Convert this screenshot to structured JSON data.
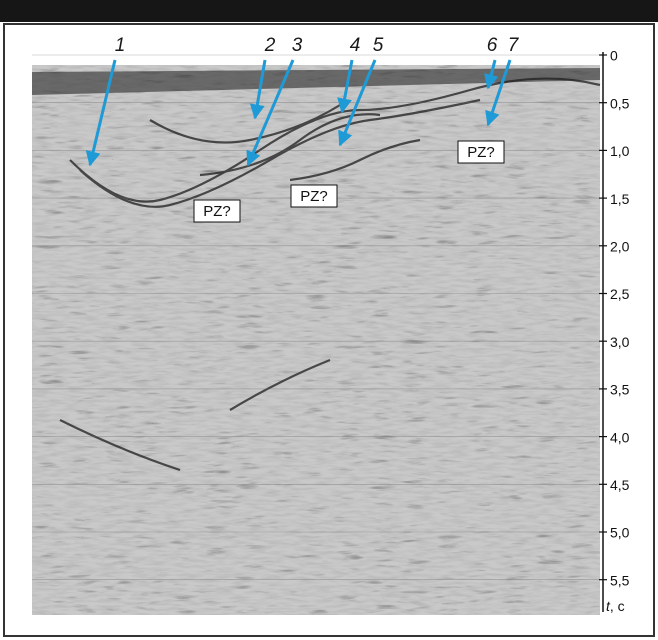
{
  "labels": {
    "arrows": [
      "1",
      "2",
      "3",
      "4",
      "5",
      "6",
      "7"
    ],
    "zones": [
      "PZ?",
      "PZ?",
      "PZ?"
    ]
  },
  "axis": {
    "ticks": [
      "0",
      "0,5",
      "1,0",
      "1,5",
      "2,0",
      "2,5",
      "3,0",
      "3,5",
      "4,0",
      "4,5",
      "5,0",
      "5,5"
    ],
    "variable": "t",
    "unit": ", c"
  }
}
